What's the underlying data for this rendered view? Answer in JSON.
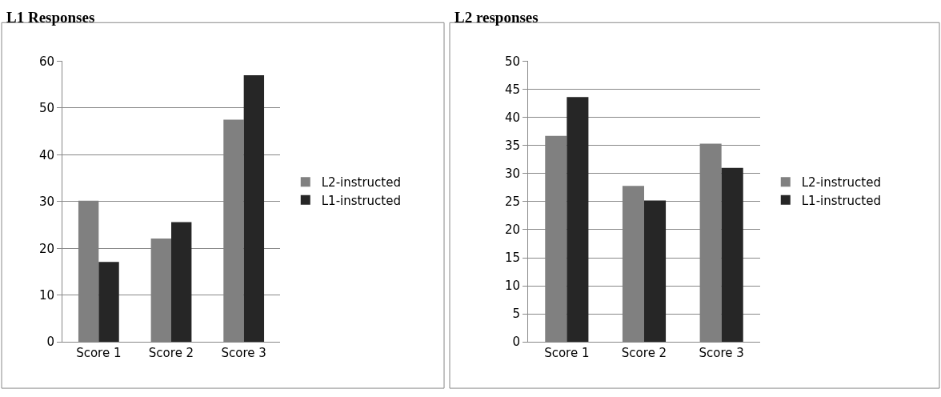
{
  "chart_data": [
    {
      "type": "bar",
      "title": "L1 Responses",
      "categories": [
        "Score 1",
        "Score 2",
        "Score 3"
      ],
      "series": [
        {
          "name": "L2-instructed",
          "color": "#808080",
          "values": [
            30.2,
            22.1,
            47.5
          ]
        },
        {
          "name": "L1-instructed",
          "color": "#262626",
          "values": [
            17.1,
            25.6,
            57.0
          ]
        }
      ],
      "ylim": [
        0,
        60
      ],
      "yticks": [
        0,
        10,
        20,
        30,
        40,
        50,
        60
      ],
      "grid": "y",
      "legend": "right"
    },
    {
      "type": "bar",
      "title": "L2 responses",
      "categories": [
        "Score 1",
        "Score 2",
        "Score 3"
      ],
      "series": [
        {
          "name": "L2-instructed",
          "color": "#808080",
          "values": [
            36.7,
            27.8,
            35.3
          ]
        },
        {
          "name": "L1-instructed",
          "color": "#262626",
          "values": [
            43.6,
            25.2,
            31.0
          ]
        }
      ],
      "ylim": [
        0,
        50
      ],
      "yticks": [
        0,
        5,
        10,
        15,
        20,
        25,
        30,
        35,
        40,
        45,
        50
      ],
      "grid": "y",
      "legend": "right"
    }
  ]
}
